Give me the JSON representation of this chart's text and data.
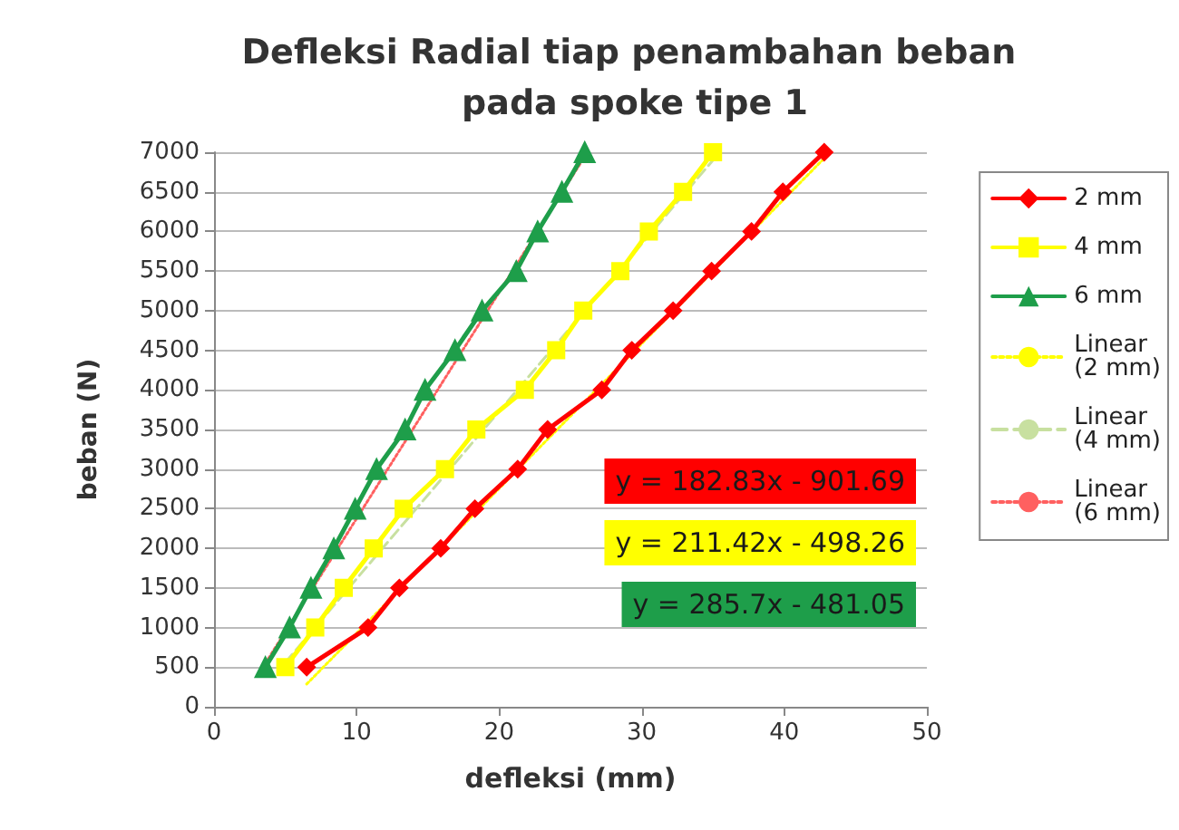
{
  "chart_data": {
    "type": "line",
    "title": "Defleksi Radial tiap penambahan beban pada spoke tipe 1",
    "xlabel": "defleksi (mm)",
    "ylabel": "beban (N)",
    "xlim": [
      0,
      50
    ],
    "xticks": [
      0,
      10,
      20,
      30,
      40,
      50
    ],
    "ylim": [
      0,
      7000
    ],
    "yticks": [
      0,
      500,
      1000,
      1500,
      2000,
      2500,
      3000,
      3500,
      4000,
      4500,
      5000,
      5500,
      6000,
      6500,
      7000
    ],
    "grid": "y",
    "legend": "right",
    "line_style": "solid",
    "annotations": [
      "y = 182.83x - 901.69",
      "y = 211.42x - 498.26",
      "y = 285.7x - 481.05"
    ],
    "series": [
      {
        "name": "2 mm",
        "color": "#ff0000",
        "marker": "diamond",
        "x": [
          6.5,
          10.8,
          13.0,
          15.9,
          18.3,
          21.3,
          23.4,
          27.2,
          29.3,
          32.2,
          34.9,
          37.7,
          39.9,
          42.8
        ],
        "values": [
          500,
          1000,
          1500,
          2000,
          2500,
          3000,
          3500,
          4000,
          4500,
          5000,
          5500,
          6000,
          6500,
          7000
        ]
      },
      {
        "name": "4 mm",
        "color": "#ffff00",
        "marker": "square",
        "x": [
          5.0,
          7.1,
          9.1,
          11.2,
          13.3,
          16.2,
          18.4,
          21.8,
          24.0,
          25.9,
          28.5,
          30.5,
          32.9,
          35.0
        ],
        "values": [
          500,
          1000,
          1500,
          2000,
          2500,
          3000,
          3500,
          4000,
          4500,
          5000,
          5500,
          6000,
          6500,
          7000
        ]
      },
      {
        "name": "6 mm",
        "color": "#1e9e4a",
        "marker": "triangle",
        "x": [
          3.6,
          5.3,
          6.8,
          8.4,
          9.9,
          11.4,
          13.4,
          14.8,
          16.9,
          18.8,
          21.2,
          22.7,
          24.4,
          26.0
        ],
        "values": [
          500,
          1000,
          1500,
          2000,
          2500,
          3000,
          3500,
          4000,
          4500,
          5000,
          5500,
          6000,
          6500,
          7000
        ]
      },
      {
        "name": "Linear (2 mm)",
        "color": "#ffff00",
        "marker": "none",
        "line_style": "dotted",
        "x": [
          6.5,
          42.8
        ],
        "values": [
          287,
          6924
        ]
      },
      {
        "name": "Linear (4 mm)",
        "color": "#c8e0a0",
        "marker": "none",
        "line_style": "dashed",
        "x": [
          5.0,
          35.0
        ],
        "values": [
          559,
          6901
        ]
      },
      {
        "name": "Linear (6 mm)",
        "color": "#ff6060",
        "marker": "none",
        "line_style": "dotted",
        "x": [
          3.6,
          26.0
        ],
        "values": [
          548,
          6947
        ]
      }
    ]
  }
}
